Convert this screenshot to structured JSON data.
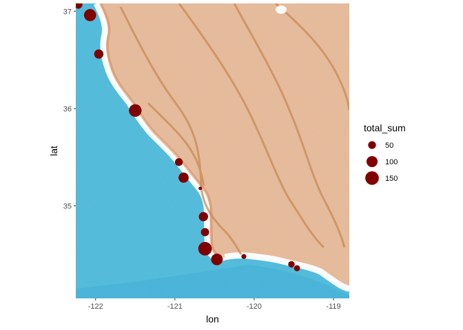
{
  "chart_data": {
    "type": "scatter",
    "title": "",
    "xlabel": "lon",
    "ylabel": "lat",
    "xlim": [
      -122.25,
      -118.8
    ],
    "ylim": [
      34.05,
      37.08
    ],
    "xticks": [
      -122,
      -121,
      -120,
      -119
    ],
    "yticks": [
      35,
      36,
      37
    ],
    "xtick_labels": [
      "-122",
      "-121",
      "-120",
      "-119"
    ],
    "ytick_labels": [
      "35",
      "36",
      "37"
    ],
    "point_color": "#800000",
    "size_variable": "total_sum",
    "size_range_value": [
      10,
      170
    ],
    "background": "watercolor map tiles",
    "points": [
      {
        "lon": -122.22,
        "lat": 37.07,
        "total_sum": 60
      },
      {
        "lon": -122.07,
        "lat": 36.96,
        "total_sum": 120
      },
      {
        "lon": -121.96,
        "lat": 36.56,
        "total_sum": 70
      },
      {
        "lon": -121.5,
        "lat": 35.98,
        "total_sum": 130
      },
      {
        "lon": -120.95,
        "lat": 35.45,
        "total_sum": 50
      },
      {
        "lon": -120.89,
        "lat": 35.29,
        "total_sum": 85
      },
      {
        "lon": -120.68,
        "lat": 35.18,
        "total_sum": 8
      },
      {
        "lon": -120.64,
        "lat": 34.89,
        "total_sum": 70
      },
      {
        "lon": -120.62,
        "lat": 34.73,
        "total_sum": 55
      },
      {
        "lon": -120.62,
        "lat": 34.56,
        "total_sum": 150
      },
      {
        "lon": -120.47,
        "lat": 34.45,
        "total_sum": 110
      },
      {
        "lon": -120.13,
        "lat": 34.48,
        "total_sum": 20
      },
      {
        "lon": -119.53,
        "lat": 34.4,
        "total_sum": 35
      },
      {
        "lon": -119.46,
        "lat": 34.36,
        "total_sum": 30
      }
    ],
    "legend": {
      "title": "total_sum",
      "position": "right",
      "entries": [
        {
          "label": "50",
          "value": 50
        },
        {
          "label": "100",
          "value": 100
        },
        {
          "label": "150",
          "value": 150
        }
      ]
    }
  }
}
